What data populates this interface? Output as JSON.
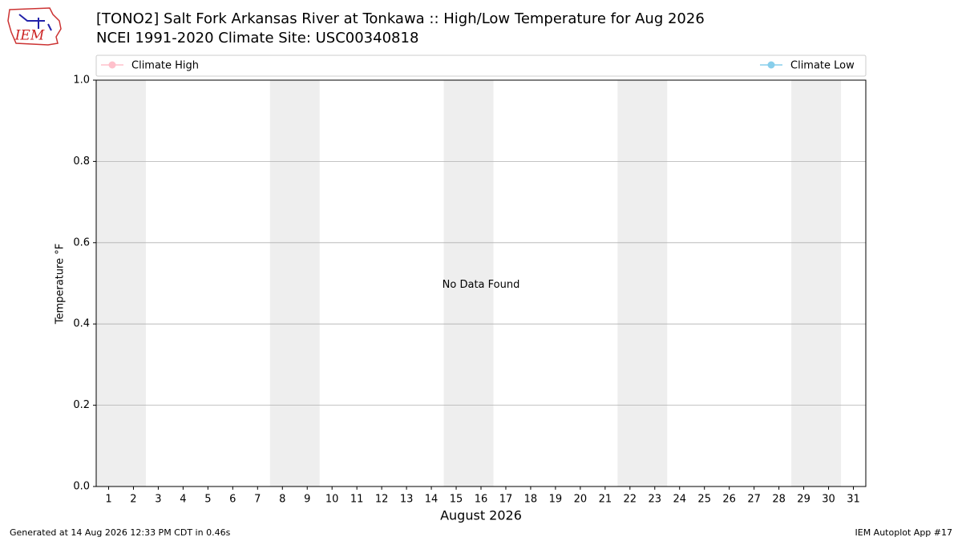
{
  "logo_text": "IEM",
  "chart_data": {
    "type": "line",
    "title": "[TONO2] Salt Fork Arkansas River at Tonkawa :: High/Low Temperature for Aug 2026",
    "subtitle": "NCEI 1991-2020 Climate Site: USC00340818",
    "x_label": "August 2026",
    "y_label": "Temperature °F",
    "annotation": "No Data Found",
    "x": [
      1,
      2,
      3,
      4,
      5,
      6,
      7,
      8,
      9,
      10,
      11,
      12,
      13,
      14,
      15,
      16,
      17,
      18,
      19,
      20,
      21,
      22,
      23,
      24,
      25,
      26,
      27,
      28,
      29,
      30,
      31
    ],
    "series": [
      {
        "name": "Climate High",
        "color": "#ffc0cb",
        "values": [
          null,
          null,
          null,
          null,
          null,
          null,
          null,
          null,
          null,
          null,
          null,
          null,
          null,
          null,
          null,
          null,
          null,
          null,
          null,
          null,
          null,
          null,
          null,
          null,
          null,
          null,
          null,
          null,
          null,
          null,
          null
        ]
      },
      {
        "name": "Climate Low",
        "color": "#87ceeb",
        "values": [
          null,
          null,
          null,
          null,
          null,
          null,
          null,
          null,
          null,
          null,
          null,
          null,
          null,
          null,
          null,
          null,
          null,
          null,
          null,
          null,
          null,
          null,
          null,
          null,
          null,
          null,
          null,
          null,
          null,
          null,
          null
        ]
      }
    ],
    "xlim": [
      0.5,
      31.5
    ],
    "xticks": [
      1,
      2,
      3,
      4,
      5,
      6,
      7,
      8,
      9,
      10,
      11,
      12,
      13,
      14,
      15,
      16,
      17,
      18,
      19,
      20,
      21,
      22,
      23,
      24,
      25,
      26,
      27,
      28,
      29,
      30,
      31
    ],
    "ylim": [
      0,
      1
    ],
    "yticks": [
      {
        "value": 0,
        "label": "0.0"
      },
      {
        "value": 0.2,
        "label": "0.2"
      },
      {
        "value": 0.4,
        "label": "0.4"
      },
      {
        "value": 0.6,
        "label": "0.6"
      },
      {
        "value": 0.8,
        "label": "0.8"
      },
      {
        "value": 1,
        "label": "1.0"
      }
    ],
    "grid": "y",
    "shaded_x": [
      [
        0.5,
        2.5
      ],
      [
        7.5,
        9.5
      ],
      [
        14.5,
        16.5
      ],
      [
        21.5,
        23.5
      ],
      [
        28.5,
        30.5
      ]
    ],
    "shade_color": "#eeeeee",
    "footer_left": "Generated at 14 Aug 2026 12:33 PM CDT in 0.46s",
    "footer_right": "IEM Autoplot App #17"
  }
}
